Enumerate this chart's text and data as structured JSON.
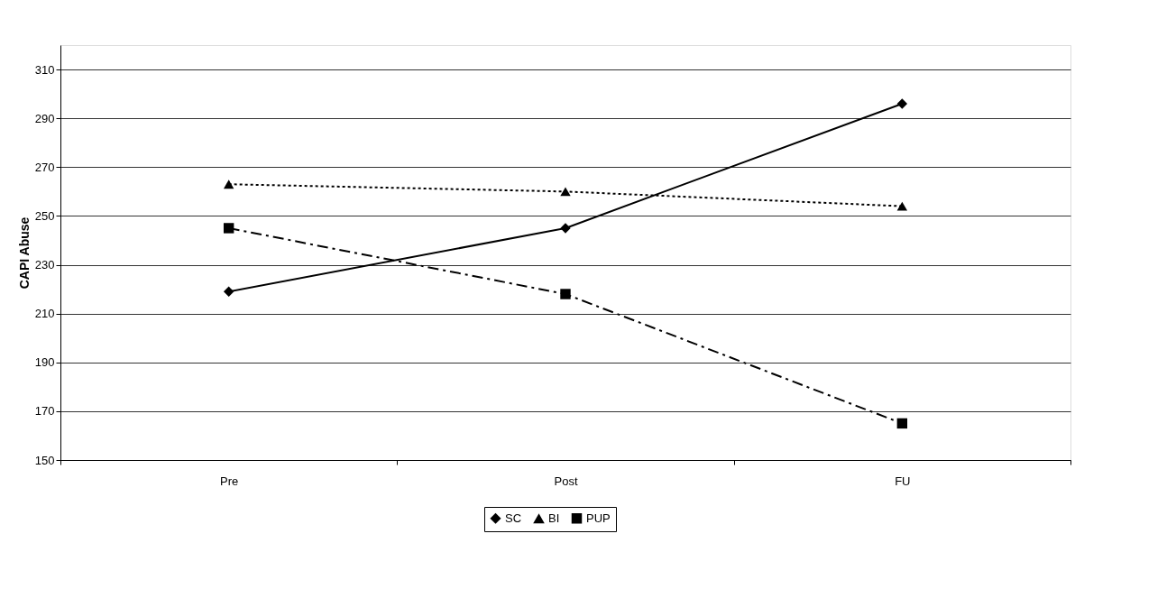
{
  "chart_data": {
    "type": "line",
    "ylabel": "CAPI Abuse",
    "categories": [
      "Pre",
      "Post",
      "FU"
    ],
    "series": [
      {
        "name": "SC",
        "color": "#000000",
        "marker": "diamond",
        "line_style": "solid",
        "values": [
          219,
          245,
          296
        ]
      },
      {
        "name": "BI",
        "color": "#000000",
        "marker": "triangle",
        "line_style": "dotted",
        "values": [
          263,
          260,
          254
        ]
      },
      {
        "name": "PUP",
        "color": "#000000",
        "marker": "square",
        "line_style": "dashed",
        "values": [
          245,
          218,
          165
        ]
      }
    ],
    "ylim": [
      150,
      320
    ],
    "yticks": [
      150,
      170,
      190,
      210,
      230,
      250,
      270,
      290,
      310
    ],
    "grid": "y",
    "legend": "bottom"
  }
}
